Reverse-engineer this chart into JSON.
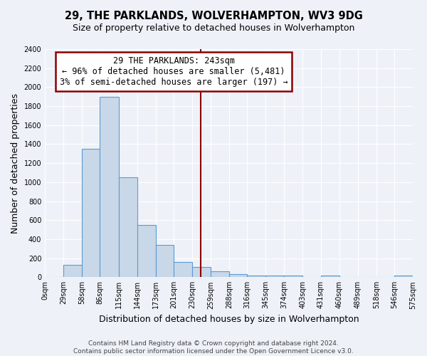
{
  "title": "29, THE PARKLANDS, WOLVERHAMPTON, WV3 9DG",
  "subtitle": "Size of property relative to detached houses in Wolverhampton",
  "xlabel": "Distribution of detached houses by size in Wolverhampton",
  "ylabel": "Number of detached properties",
  "bin_edges": [
    0,
    29,
    58,
    86,
    115,
    144,
    173,
    201,
    230,
    259,
    288,
    316,
    345,
    374,
    403,
    431,
    460,
    489,
    518,
    546,
    575
  ],
  "bar_heights": [
    0,
    130,
    1350,
    1900,
    1050,
    550,
    340,
    160,
    110,
    60,
    30,
    20,
    15,
    15,
    0,
    15,
    0,
    0,
    0,
    20
  ],
  "bar_color": "#c8d8e8",
  "bar_edge_color": "#5b9bd5",
  "vline_x": 243,
  "vline_color": "#8b0000",
  "annotation_title": "29 THE PARKLANDS: 243sqm",
  "annotation_line1": "← 96% of detached houses are smaller (5,481)",
  "annotation_line2": "3% of semi-detached houses are larger (197) →",
  "annotation_fontsize": 8.5,
  "ylim": [
    0,
    2400
  ],
  "yticks": [
    0,
    200,
    400,
    600,
    800,
    1000,
    1200,
    1400,
    1600,
    1800,
    2000,
    2200,
    2400
  ],
  "tick_labels": [
    "0sqm",
    "29sqm",
    "58sqm",
    "86sqm",
    "115sqm",
    "144sqm",
    "173sqm",
    "201sqm",
    "230sqm",
    "259sqm",
    "288sqm",
    "316sqm",
    "345sqm",
    "374sqm",
    "403sqm",
    "431sqm",
    "460sqm",
    "489sqm",
    "518sqm",
    "546sqm",
    "575sqm"
  ],
  "footer_line1": "Contains HM Land Registry data © Crown copyright and database right 2024.",
  "footer_line2": "Contains public sector information licensed under the Open Government Licence v3.0.",
  "background_color": "#eef2f8",
  "grid_color": "#ffffff",
  "title_fontsize": 10.5,
  "subtitle_fontsize": 9,
  "axis_label_fontsize": 9,
  "tick_fontsize": 7,
  "footer_fontsize": 6.5
}
